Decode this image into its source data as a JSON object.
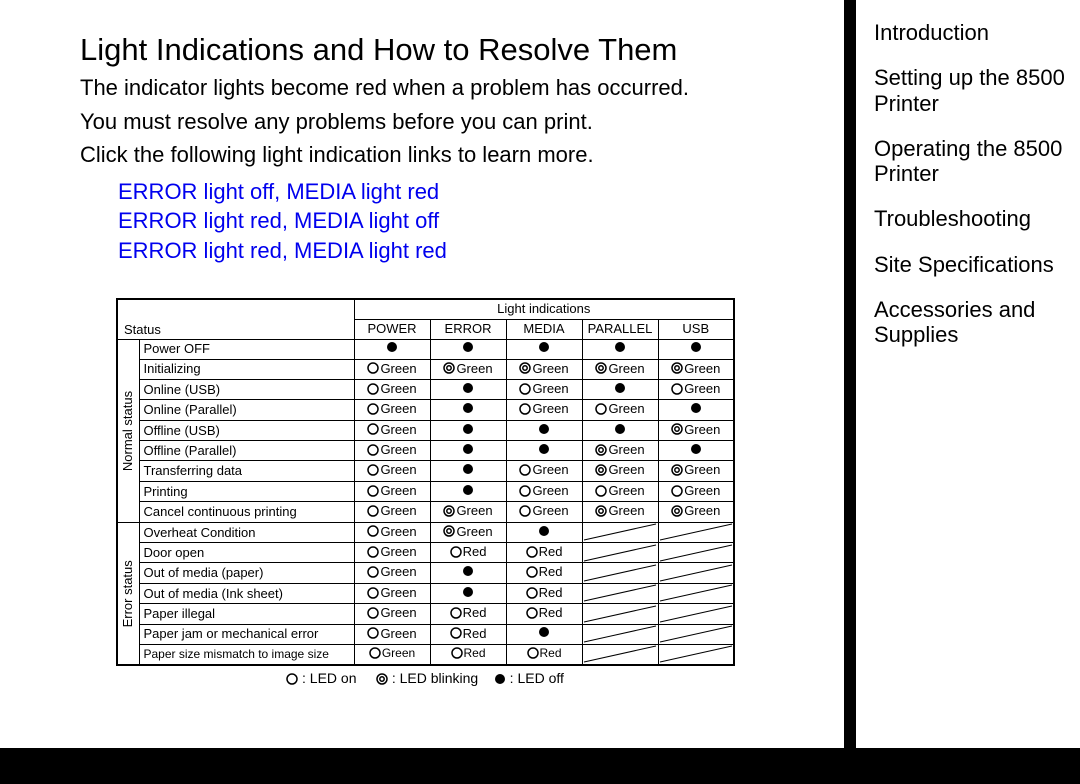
{
  "title": "Light Indications and How to Resolve Them",
  "intro_lines": [
    "The indicator lights become red when a problem has occurred.",
    "You must resolve any problems before you can print.",
    "Click the following light indication links to learn more."
  ],
  "links": [
    "ERROR light off, MEDIA light red",
    "ERROR light red, MEDIA light off",
    "ERROR light red, MEDIA light red"
  ],
  "sidebar": [
    "Introduction",
    "Setting up the 8500 Printer",
    "Operating the 8500 Printer",
    "Troubleshooting",
    "Site Specifications",
    "Accessories and Supplies"
  ],
  "table": {
    "super_header": "Light indications",
    "status_header": "Status",
    "group_labels": {
      "normal": "Normal status",
      "error": "Error status"
    },
    "columns": [
      "POWER",
      "ERROR",
      "MEDIA",
      "PARALLEL",
      "USB"
    ],
    "rows": [
      {
        "group": "normal",
        "label": "Power OFF",
        "cells": [
          {
            "t": "off"
          },
          {
            "t": "off"
          },
          {
            "t": "off"
          },
          {
            "t": "off"
          },
          {
            "t": "off"
          }
        ]
      },
      {
        "group": "normal",
        "label": "Initializing",
        "cells": [
          {
            "t": "on",
            "c": "Green"
          },
          {
            "t": "blink",
            "c": "Green"
          },
          {
            "t": "blink",
            "c": "Green"
          },
          {
            "t": "blink",
            "c": "Green"
          },
          {
            "t": "blink",
            "c": "Green"
          }
        ]
      },
      {
        "group": "normal",
        "label": "Online (USB)",
        "cells": [
          {
            "t": "on",
            "c": "Green"
          },
          {
            "t": "off"
          },
          {
            "t": "on",
            "c": "Green"
          },
          {
            "t": "off"
          },
          {
            "t": "on",
            "c": "Green"
          }
        ]
      },
      {
        "group": "normal",
        "label": "Online (Parallel)",
        "cells": [
          {
            "t": "on",
            "c": "Green"
          },
          {
            "t": "off"
          },
          {
            "t": "on",
            "c": "Green"
          },
          {
            "t": "on",
            "c": "Green"
          },
          {
            "t": "off"
          }
        ]
      },
      {
        "group": "normal",
        "label": "Offline (USB)",
        "cells": [
          {
            "t": "on",
            "c": "Green"
          },
          {
            "t": "off"
          },
          {
            "t": "off"
          },
          {
            "t": "off"
          },
          {
            "t": "blink",
            "c": "Green"
          }
        ]
      },
      {
        "group": "normal",
        "label": "Offline (Parallel)",
        "cells": [
          {
            "t": "on",
            "c": "Green"
          },
          {
            "t": "off"
          },
          {
            "t": "off"
          },
          {
            "t": "blink",
            "c": "Green"
          },
          {
            "t": "off"
          }
        ]
      },
      {
        "group": "normal",
        "label": "Transferring data",
        "cells": [
          {
            "t": "on",
            "c": "Green"
          },
          {
            "t": "off"
          },
          {
            "t": "on",
            "c": "Green"
          },
          {
            "t": "blink",
            "c": "Green"
          },
          {
            "t": "blink",
            "c": "Green"
          }
        ]
      },
      {
        "group": "normal",
        "label": "Printing",
        "cells": [
          {
            "t": "on",
            "c": "Green"
          },
          {
            "t": "off"
          },
          {
            "t": "on",
            "c": "Green"
          },
          {
            "t": "on",
            "c": "Green"
          },
          {
            "t": "on",
            "c": "Green"
          }
        ]
      },
      {
        "group": "normal",
        "label": "Cancel continuous printing",
        "cells": [
          {
            "t": "on",
            "c": "Green"
          },
          {
            "t": "blink",
            "c": "Green"
          },
          {
            "t": "on",
            "c": "Green"
          },
          {
            "t": "blink",
            "c": "Green"
          },
          {
            "t": "blink",
            "c": "Green"
          }
        ]
      },
      {
        "group": "error",
        "label": "Overheat Condition",
        "cells": [
          {
            "t": "on",
            "c": "Green"
          },
          {
            "t": "blink",
            "c": "Green"
          },
          {
            "t": "off"
          },
          {
            "t": "na"
          },
          {
            "t": "na"
          }
        ]
      },
      {
        "group": "error",
        "label": "Door open",
        "cells": [
          {
            "t": "on",
            "c": "Green"
          },
          {
            "t": "on",
            "c": "Red"
          },
          {
            "t": "on",
            "c": "Red"
          },
          {
            "t": "na"
          },
          {
            "t": "na"
          }
        ]
      },
      {
        "group": "error",
        "label": "Out of media (paper)",
        "cells": [
          {
            "t": "on",
            "c": "Green"
          },
          {
            "t": "off"
          },
          {
            "t": "on",
            "c": "Red"
          },
          {
            "t": "na"
          },
          {
            "t": "na"
          }
        ]
      },
      {
        "group": "error",
        "label": "Out of media (Ink sheet)",
        "cells": [
          {
            "t": "on",
            "c": "Green"
          },
          {
            "t": "off"
          },
          {
            "t": "on",
            "c": "Red"
          },
          {
            "t": "na"
          },
          {
            "t": "na"
          }
        ]
      },
      {
        "group": "error",
        "label": "Paper illegal",
        "cells": [
          {
            "t": "on",
            "c": "Green"
          },
          {
            "t": "on",
            "c": "Red"
          },
          {
            "t": "on",
            "c": "Red"
          },
          {
            "t": "na"
          },
          {
            "t": "na"
          }
        ]
      },
      {
        "group": "error",
        "label": "Paper jam or mechanical error",
        "cells": [
          {
            "t": "on",
            "c": "Green"
          },
          {
            "t": "on",
            "c": "Red"
          },
          {
            "t": "off"
          },
          {
            "t": "na"
          },
          {
            "t": "na"
          }
        ]
      },
      {
        "group": "error",
        "label": "Paper size mismatch to image size",
        "small": true,
        "cells": [
          {
            "t": "on",
            "c": "Green"
          },
          {
            "t": "on",
            "c": "Red"
          },
          {
            "t": "on",
            "c": "Red"
          },
          {
            "t": "na"
          },
          {
            "t": "na"
          }
        ]
      }
    ]
  },
  "legend": {
    "on": ": LED on",
    "blink": ": LED blinking",
    "off": ": LED off"
  },
  "colors": {
    "link": "#0000ee",
    "text": "#000000",
    "border": "#000000",
    "background": "#ffffff"
  }
}
